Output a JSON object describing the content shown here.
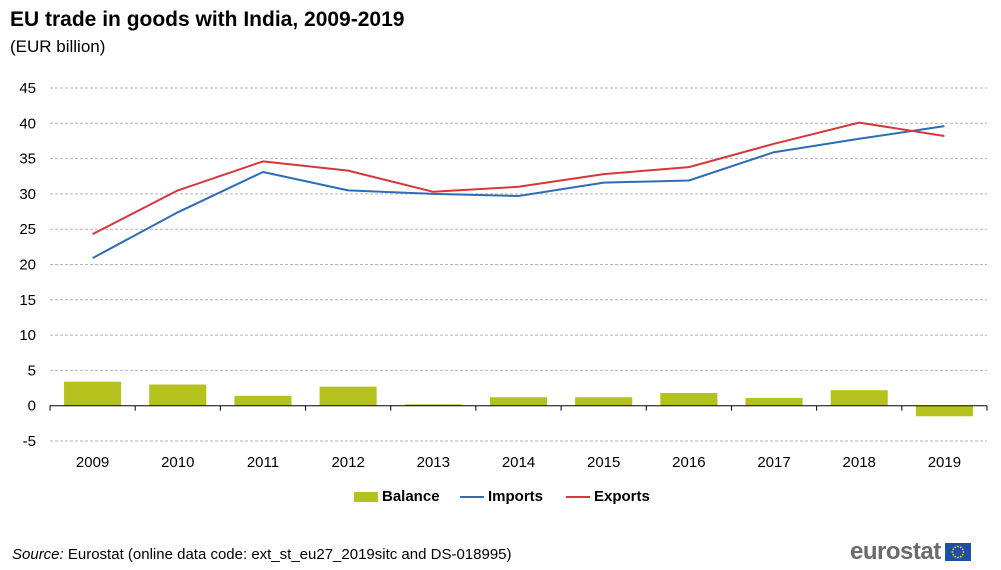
{
  "chart_data": {
    "type": "bar+line",
    "title": "EU trade in goods with India, 2009-2019",
    "subtitle": "(EUR billion)",
    "categories": [
      "2009",
      "2010",
      "2011",
      "2012",
      "2013",
      "2014",
      "2015",
      "2016",
      "2017",
      "2018",
      "2019"
    ],
    "ylim": [
      -5,
      45
    ],
    "yticks": [
      -5,
      0,
      5,
      10,
      15,
      20,
      25,
      30,
      35,
      40,
      45
    ],
    "grid": true,
    "legend_position": "bottom",
    "series": [
      {
        "name": "Balance",
        "type": "bar",
        "color": "#b5c21e",
        "values": [
          3.4,
          3.0,
          1.4,
          2.7,
          0.2,
          1.2,
          1.2,
          1.8,
          1.1,
          2.2,
          -1.5
        ]
      },
      {
        "name": "Imports",
        "type": "line",
        "color": "#2e6db4",
        "values": [
          20.9,
          27.4,
          33.1,
          30.5,
          30.0,
          29.7,
          31.6,
          31.9,
          35.9,
          37.8,
          39.6
        ]
      },
      {
        "name": "Exports",
        "type": "line",
        "color": "#d7363c",
        "values": [
          24.3,
          30.5,
          34.6,
          33.3,
          30.3,
          31.0,
          32.8,
          33.8,
          37.1,
          40.1,
          38.2
        ]
      }
    ]
  },
  "source_label": "Source:",
  "source_text": " Eurostat (online data code: ext_st_eu27_2019sitc and DS-018995)",
  "logo_text": "eurostat"
}
